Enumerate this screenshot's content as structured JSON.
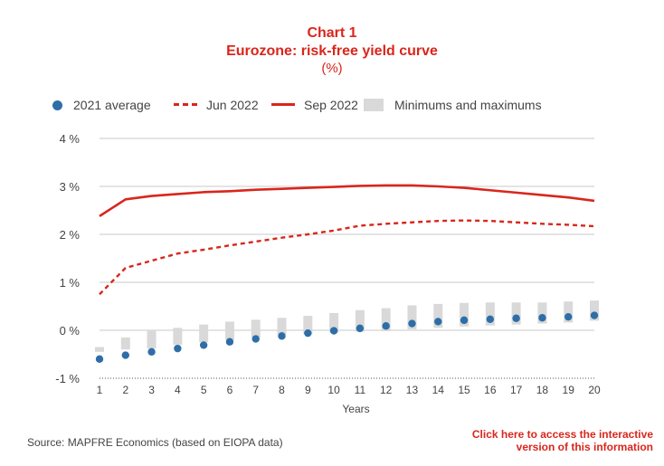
{
  "header": {
    "chart_number": "Chart 1",
    "title": "Eurozone: risk-free yield curve",
    "unit": "(%)"
  },
  "footer": {
    "source": "Source: MAPFRE Economics (based on EIOPA data)",
    "link_line1": "Click here to access the interactive",
    "link_line2": "version of this information"
  },
  "chart_data": {
    "type": "line",
    "title": "Eurozone: risk-free yield curve",
    "unit": "(%)",
    "xlabel": "Years",
    "ylabel": "",
    "x": [
      1,
      2,
      3,
      4,
      5,
      6,
      7,
      8,
      9,
      10,
      11,
      12,
      13,
      14,
      15,
      16,
      17,
      18,
      19,
      20
    ],
    "ylim": [
      -1,
      4
    ],
    "yticks": [
      -1,
      0,
      1,
      2,
      3,
      4
    ],
    "ytick_labels": [
      "-1 %",
      "0 %",
      "1 %",
      "2 %",
      "3 %",
      "4 %"
    ],
    "grid": true,
    "legend_position": "top",
    "series": [
      {
        "name": "2021 average",
        "style": "dots",
        "color": "#2e6ea8",
        "values": [
          -0.6,
          -0.52,
          -0.45,
          -0.38,
          -0.31,
          -0.24,
          -0.18,
          -0.12,
          -0.06,
          -0.01,
          0.04,
          0.09,
          0.14,
          0.18,
          0.21,
          0.23,
          0.25,
          0.26,
          0.28,
          0.31
        ]
      },
      {
        "name": "Jun 2022",
        "style": "dashed",
        "color": "#d9261c",
        "values": [
          0.75,
          1.3,
          1.45,
          1.6,
          1.68,
          1.77,
          1.85,
          1.93,
          2.0,
          2.08,
          2.18,
          2.22,
          2.25,
          2.28,
          2.29,
          2.28,
          2.25,
          2.22,
          2.2,
          2.17
        ]
      },
      {
        "name": "Sep 2022",
        "style": "solid",
        "color": "#d9261c",
        "values": [
          2.38,
          2.73,
          2.8,
          2.84,
          2.88,
          2.9,
          2.93,
          2.95,
          2.97,
          2.99,
          3.01,
          3.02,
          3.02,
          3.0,
          2.97,
          2.92,
          2.87,
          2.82,
          2.77,
          2.7
        ]
      },
      {
        "name": "Minimums and maximums",
        "style": "range",
        "color": "#d9d9d9",
        "low": [
          -0.45,
          -0.4,
          -0.38,
          -0.3,
          -0.25,
          -0.2,
          -0.15,
          -0.1,
          -0.08,
          -0.05,
          -0.03,
          -0.02,
          0.02,
          0.05,
          0.08,
          0.1,
          0.12,
          0.14,
          0.16,
          0.2
        ],
        "high": [
          -0.35,
          -0.15,
          0.0,
          0.05,
          0.12,
          0.18,
          0.22,
          0.26,
          0.3,
          0.36,
          0.42,
          0.46,
          0.52,
          0.55,
          0.57,
          0.58,
          0.58,
          0.58,
          0.6,
          0.62
        ]
      }
    ]
  }
}
